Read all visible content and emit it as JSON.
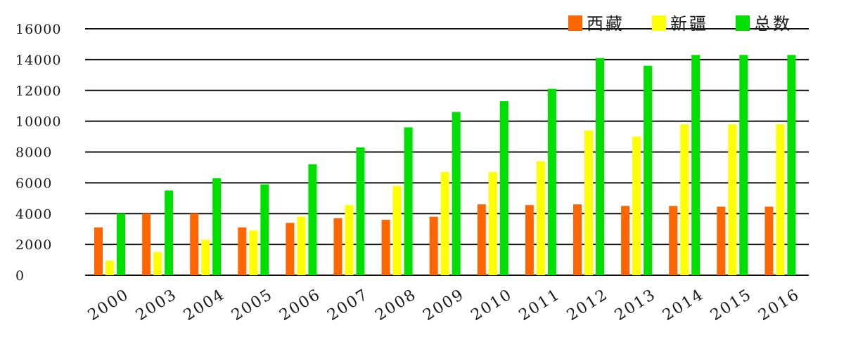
{
  "chart_data": {
    "type": "bar",
    "categories": [
      "2000",
      "2003",
      "2004",
      "2005",
      "2006",
      "2007",
      "2008",
      "2009",
      "2010",
      "2011",
      "2012",
      "2013",
      "2014",
      "2015",
      "2016"
    ],
    "series": [
      {
        "name": "西藏",
        "color": "#ff6600",
        "values": [
          3100,
          4000,
          4000,
          3100,
          3400,
          3700,
          3600,
          3800,
          4600,
          4550,
          4600,
          4500,
          4500,
          4450,
          4450
        ]
      },
      {
        "name": "新疆",
        "color": "#ffff00",
        "values": [
          950,
          1500,
          2300,
          2900,
          3800,
          4550,
          5800,
          6700,
          6700,
          7400,
          9400,
          9000,
          9800,
          9800,
          9800
        ]
      },
      {
        "name": "总数",
        "color": "#00e000",
        "values": [
          4000,
          5500,
          6300,
          5900,
          7200,
          8300,
          9600,
          10600,
          11300,
          12100,
          14100,
          13600,
          14300,
          14300,
          14300
        ]
      }
    ],
    "y_ticks": [
      0,
      2000,
      4000,
      6000,
      8000,
      10000,
      12000,
      14000,
      16000
    ],
    "ylim": [
      0,
      16000
    ],
    "grid": true,
    "legend_position": "top-right",
    "title": "",
    "xlabel": "",
    "ylabel": ""
  }
}
